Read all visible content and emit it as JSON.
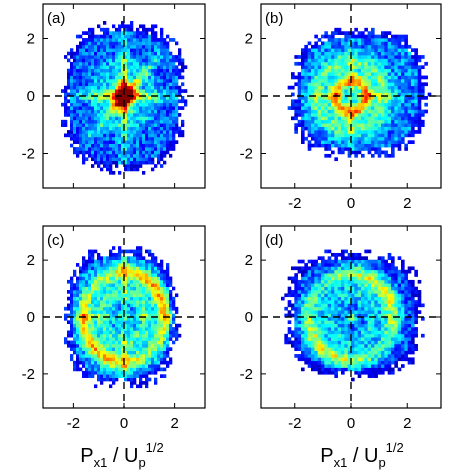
{
  "chart_data": {
    "type": "heatmap",
    "layout": "2x2",
    "xrange": [
      -3.2,
      3.2
    ],
    "yrange": [
      -3.2,
      3.2
    ],
    "xticks": [
      "-2",
      "0",
      "2"
    ],
    "yticks": [
      "2",
      "0",
      "-2"
    ],
    "grid": false,
    "crosshair": "dashed lines at x=0 and y=0",
    "colormap": "jet",
    "xlabel": {
      "base": "P",
      "sub": "x1",
      "sep": " / U",
      "sub2": "p",
      "sup": "1/2"
    },
    "panels": [
      {
        "label": "(a)",
        "pattern": "central-peak-cross",
        "extent_x": [
          -2.3,
          2.3
        ],
        "extent_y": [
          -2.5,
          2.4
        ]
      },
      {
        "label": "(b)",
        "pattern": "ring-cross",
        "extent_x": [
          -2.0,
          2.6
        ],
        "extent_y": [
          -2.0,
          2.2
        ]
      },
      {
        "label": "(c)",
        "pattern": "diagonal-arcs",
        "extent_x": [
          -2.2,
          2.0
        ],
        "extent_y": [
          -2.3,
          2.3
        ]
      },
      {
        "label": "(d)",
        "pattern": "diagonal-arcs-sparse",
        "extent_x": [
          -2.2,
          2.4
        ],
        "extent_y": [
          -2.0,
          2.2
        ]
      }
    ]
  }
}
